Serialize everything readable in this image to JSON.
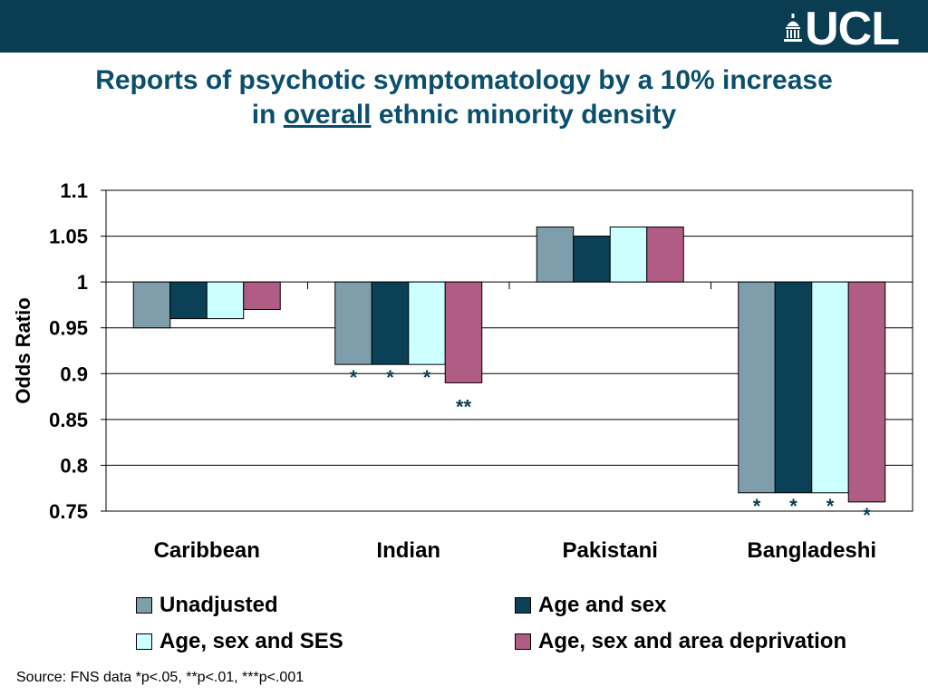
{
  "header": {
    "logo_text": "UCL",
    "bar_color": "#0b3d52"
  },
  "title": {
    "line1": "Reports of psychotic symptomatology by a 10% increase",
    "line2_prefix": "in ",
    "line2_underlined": "overall",
    "line2_suffix": " ethnic minority density"
  },
  "footer": {
    "source": "Source: FNS data   *p<.05, **p<.01, ***p<.001"
  },
  "chart_data": {
    "type": "bar",
    "ylabel": "Odds Ratio",
    "xlabel": "",
    "ylim": [
      0.75,
      1.1
    ],
    "baseline": 1,
    "yticks": [
      "1.1",
      "1.05",
      "1",
      "0.95",
      "0.9",
      "0.85",
      "0.8",
      "0.75"
    ],
    "grid": true,
    "legend_position": "bottom",
    "categories": [
      "Caribbean",
      "Indian",
      "Pakistani",
      "Bangladeshi"
    ],
    "series": [
      {
        "name": "Unadjusted",
        "color": "#7f9eac",
        "values": [
          0.95,
          0.91,
          1.06,
          0.77
        ],
        "significance": [
          "",
          "*",
          "",
          "*"
        ]
      },
      {
        "name": "Age and sex",
        "color": "#0b4156",
        "values": [
          0.96,
          0.91,
          1.05,
          0.77
        ],
        "significance": [
          "",
          "*",
          "",
          "*"
        ]
      },
      {
        "name": "Age, sex and SES",
        "color": "#ccffff",
        "values": [
          0.96,
          0.91,
          1.06,
          0.77
        ],
        "significance": [
          "",
          "*",
          "",
          "*"
        ]
      },
      {
        "name": "Age, sex and area deprivation",
        "color": "#b05c84",
        "values": [
          0.97,
          0.89,
          1.06,
          0.76
        ],
        "significance": [
          "",
          "**",
          "",
          "*"
        ]
      }
    ]
  }
}
